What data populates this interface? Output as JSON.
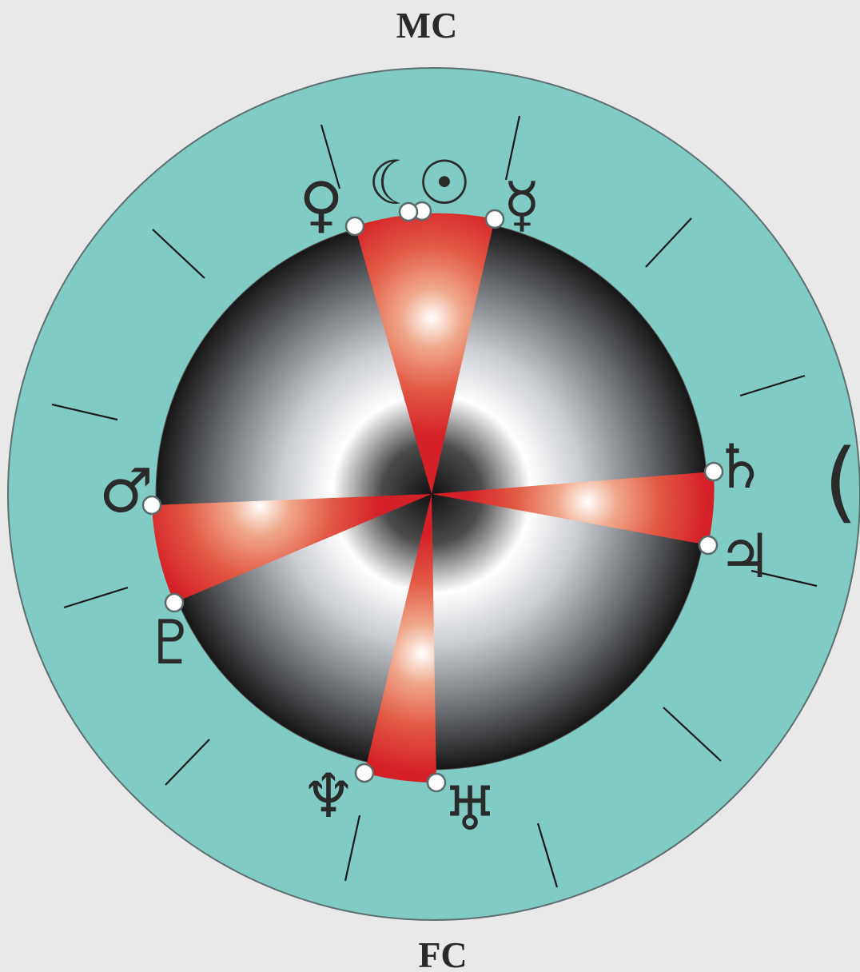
{
  "axes": {
    "top": "MC",
    "bottom": "FC"
  },
  "colors": {
    "background": "#e9e9ea",
    "ring": "#80ccc4",
    "ring_stroke": "#5f6f70",
    "sector_red": "#d42026",
    "dot_fill": "#ffffff",
    "dot_stroke": "#5a6a6a"
  },
  "planets": [
    {
      "name": "venus",
      "glyph": "♀"
    },
    {
      "name": "moon",
      "glyph": "☾"
    },
    {
      "name": "sun",
      "glyph": "☉"
    },
    {
      "name": "mercury",
      "glyph": "☿"
    },
    {
      "name": "saturn",
      "glyph": "♄"
    },
    {
      "name": "jupiter",
      "glyph": "♃"
    },
    {
      "name": "uranus",
      "glyph": "♅"
    },
    {
      "name": "neptune",
      "glyph": "♆"
    },
    {
      "name": "pluto",
      "glyph": "♇"
    },
    {
      "name": "mars",
      "glyph": "♂"
    }
  ],
  "outer_symbol": "("
}
